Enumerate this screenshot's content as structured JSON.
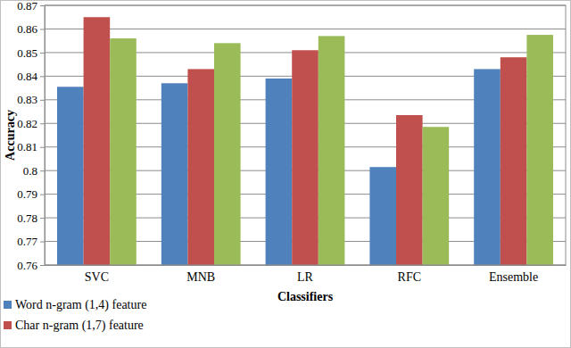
{
  "chart_data": {
    "type": "bar",
    "x_label": "Classifiers",
    "y_label": "Accuracy",
    "categories": [
      "SVC",
      "MNB",
      "LR",
      "RFC",
      "Ensemble"
    ],
    "series": [
      {
        "name": "Word n-gram (1,4) feature",
        "color": "#4f81bd",
        "values": [
          0.8355,
          0.837,
          0.839,
          0.8015,
          0.843
        ]
      },
      {
        "name": "Char n-gram (1,7) feature",
        "color": "#c0504d",
        "values": [
          0.865,
          0.843,
          0.851,
          0.8235,
          0.848
        ]
      },
      {
        "color": "#9bbb59",
        "values": [
          0.856,
          0.854,
          0.857,
          0.8185,
          0.8575
        ]
      }
    ],
    "ylim": [
      0.76,
      0.87
    ],
    "yticks": [
      0.76,
      0.77,
      0.78,
      0.79,
      0.8,
      0.81,
      0.82,
      0.83,
      0.84,
      0.85,
      0.86,
      0.87
    ],
    "grid": true,
    "legend": "bottom-left"
  }
}
